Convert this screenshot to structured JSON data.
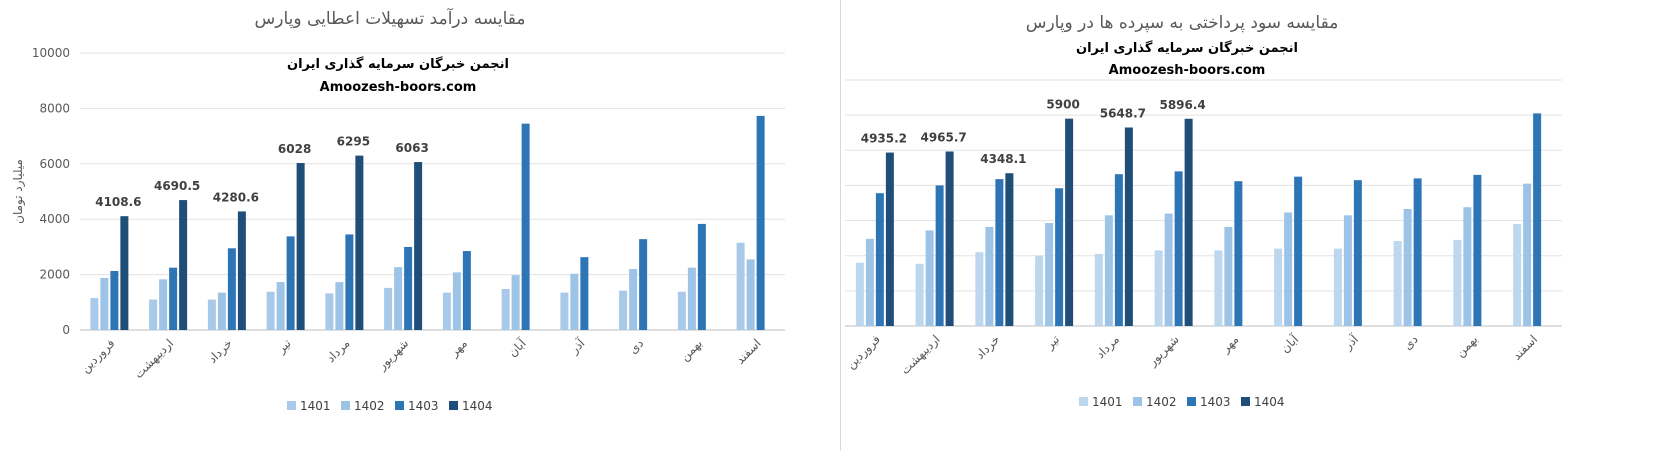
{
  "chart_data": [
    {
      "type": "bar",
      "title": "مقایسه درآمد تسهیلات اعطایی وپارس",
      "subtitle": "انجمن خبرگان سرمایه گذاری ایران",
      "website": "Amoozesh-boors.com",
      "ylabel": "میلیارد تومان",
      "ylim": [
        0,
        10000
      ],
      "yticks": [
        "0",
        "2000",
        "4000",
        "6000",
        "8000",
        "10000"
      ],
      "grid": true,
      "legend_position": "bottom",
      "categories": [
        "فروردین",
        "اردیبهشت",
        "خرداد",
        "تیر",
        "مرداد",
        "شهریور",
        "مهر",
        "آبان",
        "آذر",
        "دی",
        "بهمن",
        "اسفند"
      ],
      "series": [
        {
          "name": "1401",
          "color": "#a9c9e9",
          "values": [
            1150,
            1100,
            1100,
            1380,
            1320,
            1520,
            1350,
            1480,
            1350,
            1420,
            1380,
            3150
          ]
        },
        {
          "name": "1402",
          "color": "#9dc3e6",
          "values": [
            1880,
            1830,
            1350,
            1730,
            1730,
            2270,
            2080,
            1980,
            2030,
            2200,
            2250,
            2550
          ]
        },
        {
          "name": "1403",
          "color": "#2e75b6",
          "values": [
            2130,
            2250,
            2950,
            3380,
            3450,
            3000,
            2850,
            7450,
            2630,
            3280,
            3830,
            7730
          ]
        },
        {
          "name": "1404",
          "color": "#1f4e79",
          "values": [
            4108.6,
            4690.5,
            4280.6,
            6028,
            6295,
            6063,
            null,
            null,
            null,
            null,
            null,
            null
          ],
          "labels": [
            "4108.6",
            "4690.5",
            "4280.6",
            "6028",
            "6295",
            "6063"
          ]
        }
      ]
    },
    {
      "type": "bar",
      "title": "مقایسه سود پرداختی به سپرده ها در وپارس",
      "subtitle": "انجمن خبرگان سرمایه گذاری ایران",
      "website": "Amoozesh-boors.com",
      "ylabel": "",
      "ylim": [
        0,
        7000
      ],
      "yticks": [
        "0",
        "1000",
        "2000",
        "3000",
        "4000",
        "5000",
        "6000",
        "7000"
      ],
      "grid": true,
      "legend_position": "bottom",
      "categories": [
        "فروردین",
        "اردیبهشت",
        "خرداد",
        "تیر",
        "مرداد",
        "شهریور",
        "مهر",
        "آبان",
        "آذر",
        "دی",
        "بهمن",
        "اسفند"
      ],
      "series": [
        {
          "name": "1401",
          "color": "#bdd7ee",
          "values": [
            1800,
            1770,
            2100,
            2000,
            2050,
            2150,
            2150,
            2200,
            2200,
            2420,
            2450,
            2900
          ]
        },
        {
          "name": "1402",
          "color": "#9dc3e6",
          "values": [
            2480,
            2720,
            2820,
            2930,
            3150,
            3200,
            2820,
            3230,
            3150,
            3330,
            3380,
            4050
          ]
        },
        {
          "name": "1403",
          "color": "#2e75b6",
          "values": [
            3780,
            4000,
            4180,
            3920,
            4320,
            4400,
            4120,
            4250,
            4150,
            4200,
            4300,
            6050
          ]
        },
        {
          "name": "1404",
          "color": "#1f4e79",
          "values": [
            4935.2,
            4965.7,
            4348.1,
            5900,
            5648.7,
            5896.4,
            null,
            null,
            null,
            null,
            null,
            null
          ],
          "labels": [
            "4935.2",
            "4965.7",
            "4348.1",
            "5900",
            "5648.7",
            "5896.4"
          ]
        }
      ]
    }
  ]
}
